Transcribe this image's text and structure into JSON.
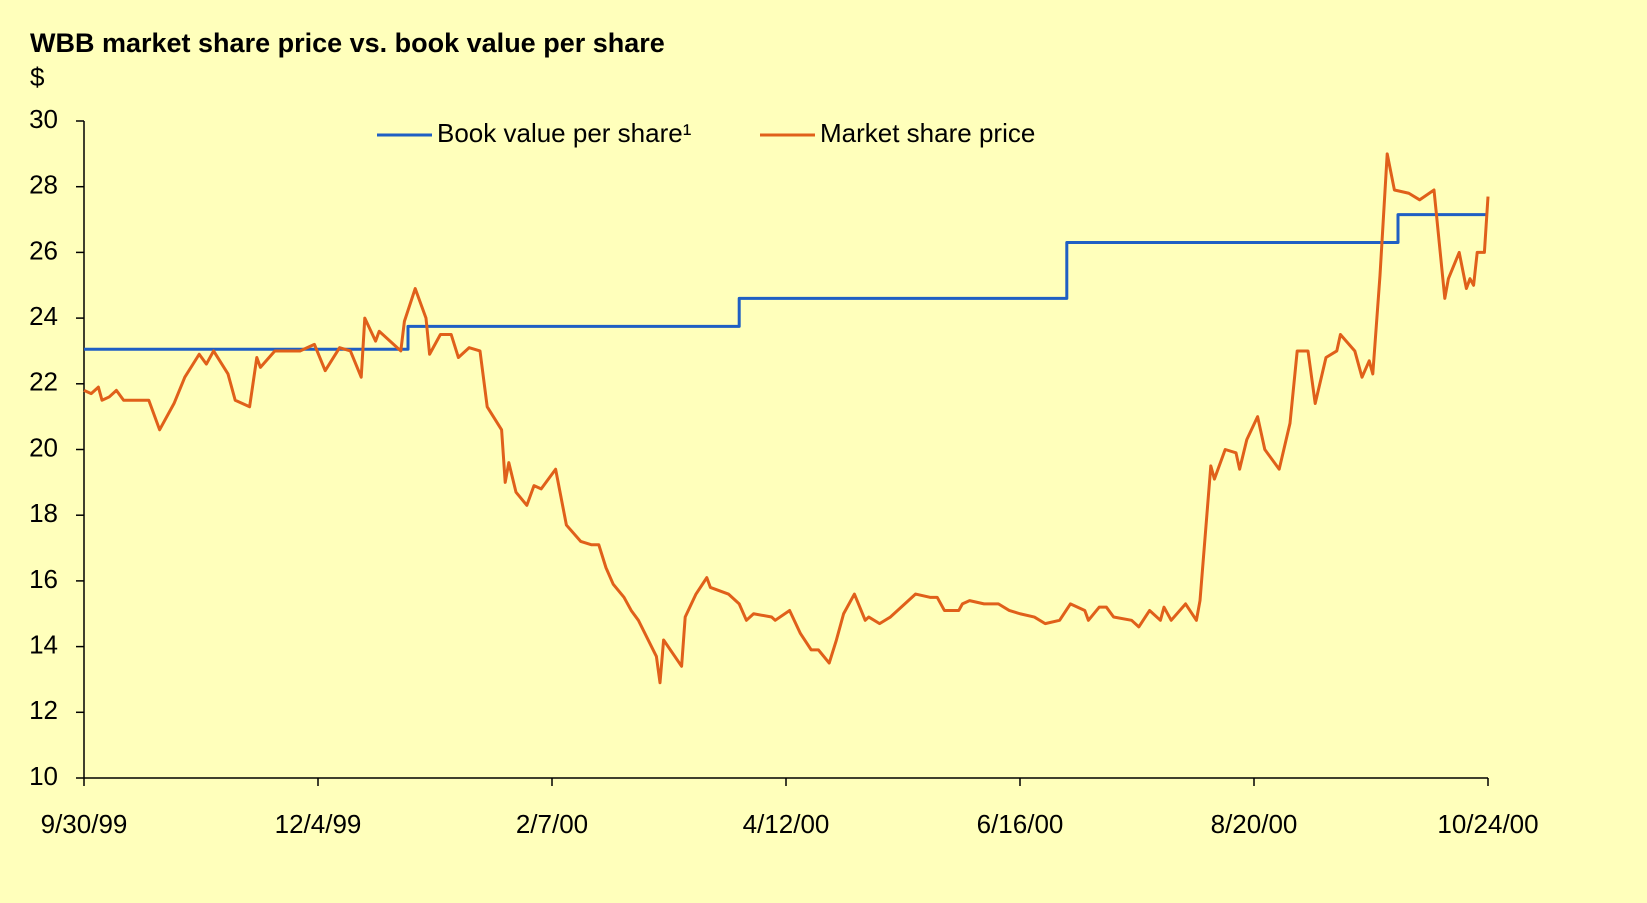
{
  "chart_data": {
    "type": "line",
    "title": "WBB market share price vs. book value per share",
    "y_label": "$",
    "ylim": [
      10,
      30
    ],
    "yticks": [
      10,
      12,
      14,
      16,
      18,
      20,
      22,
      24,
      26,
      28,
      30
    ],
    "xlim": [
      "9/30/99",
      "10/24/00"
    ],
    "xticks": [
      "9/30/99",
      "12/4/99",
      "2/7/00",
      "4/12/00",
      "6/16/00",
      "8/20/00",
      "10/24/00"
    ],
    "legend": "top",
    "series": [
      {
        "name": "Book value per share¹",
        "color": "#1f5fc4",
        "step": true,
        "x": [
          "9/30/99",
          "12/29/99",
          "3/30/00",
          "6/29/00",
          "9/29/00",
          "10/24/00"
        ],
        "values": [
          23.05,
          23.75,
          24.6,
          26.3,
          27.15,
          27.15
        ]
      },
      {
        "name": "Market share price",
        "color": "#e0601a",
        "x": [
          "9/30/99",
          "10/2/99",
          "10/4/99",
          "10/5/99",
          "10/7/99",
          "10/9/99",
          "10/11/99",
          "10/14/99",
          "10/18/99",
          "10/21/99",
          "10/25/99",
          "10/28/99",
          "11/1/99",
          "11/3/99",
          "11/5/99",
          "11/9/99",
          "11/11/99",
          "11/15/99",
          "11/17/99",
          "11/18/99",
          "11/22/99",
          "11/29/99",
          "12/3/99",
          "12/6/99",
          "12/10/99",
          "12/13/99",
          "12/16/99",
          "12/17/99",
          "12/20/99",
          "12/21/99",
          "12/25/99",
          "12/27/99",
          "12/28/99",
          "12/31/99",
          "1/3/00",
          "1/4/00",
          "1/7/00",
          "1/10/00",
          "1/12/00",
          "1/15/00",
          "1/18/00",
          "1/20/00",
          "1/24/00",
          "1/25/00",
          "1/26/00",
          "1/28/00",
          "1/31/00",
          "2/2/00",
          "2/4/00",
          "2/8/00",
          "2/11/00",
          "2/15/00",
          "2/18/00",
          "2/20/00",
          "2/22/00",
          "2/24/00",
          "2/27/00",
          "2/29/00",
          "3/2/00",
          "3/7/00",
          "3/8/00",
          "3/9/00",
          "3/14/00",
          "3/15/00",
          "3/18/00",
          "3/21/00",
          "3/22/00",
          "3/27/00",
          "3/30/00",
          "4/1/00",
          "4/3/00",
          "4/8/00",
          "4/9/00",
          "4/13/00",
          "4/16/00",
          "4/19/00",
          "4/21/00",
          "4/24/00",
          "4/26/00",
          "4/28/00",
          "5/1/00",
          "5/4/00",
          "5/5/00",
          "5/8/00",
          "5/11/00",
          "5/15/00",
          "5/18/00",
          "5/22/00",
          "5/24/00",
          "5/26/00",
          "5/30/00",
          "5/31/00",
          "6/2/00",
          "6/6/00",
          "6/10/00",
          "6/13/00",
          "6/16/00",
          "6/20/00",
          "6/23/00",
          "6/27/00",
          "6/30/00",
          "7/4/00",
          "7/5/00",
          "7/8/00",
          "7/10/00",
          "7/12/00",
          "7/17/00",
          "7/19/00",
          "7/22/00",
          "7/25/00",
          "7/26/00",
          "7/28/00",
          "8/1/00",
          "8/4/00",
          "8/5/00",
          "8/8/00",
          "8/9/00",
          "8/12/00",
          "8/15/00",
          "8/16/00",
          "8/18/00",
          "8/21/00",
          "8/23/00",
          "8/27/00",
          "8/30/00",
          "9/1/00",
          "9/4/00",
          "9/6/00",
          "9/9/00",
          "9/12/00",
          "9/13/00",
          "9/17/00",
          "9/19/00",
          "9/21/00",
          "9/22/00",
          "9/24/00",
          "9/26/00",
          "9/28/00",
          "10/2/00",
          "10/5/00",
          "10/9/00",
          "10/12/00",
          "10/13/00",
          "10/16/00",
          "10/18/00",
          "10/19/00",
          "10/20/00",
          "10/21/00",
          "10/23/00",
          "10/24/00"
        ],
        "values": [
          21.8,
          21.7,
          21.9,
          21.5,
          21.6,
          21.8,
          21.5,
          21.5,
          21.5,
          20.6,
          21.4,
          22.2,
          22.9,
          22.6,
          23.0,
          22.3,
          21.5,
          21.3,
          22.8,
          22.5,
          23.0,
          23.0,
          23.2,
          22.4,
          23.1,
          23.0,
          22.2,
          24.0,
          23.3,
          23.6,
          23.2,
          23.0,
          23.9,
          24.9,
          24.0,
          22.9,
          23.5,
          23.5,
          22.8,
          23.1,
          23.0,
          21.3,
          20.6,
          19.0,
          19.6,
          18.7,
          18.3,
          18.9,
          18.8,
          19.4,
          17.7,
          17.2,
          17.1,
          17.1,
          16.4,
          15.9,
          15.5,
          15.1,
          14.8,
          13.7,
          12.9,
          14.2,
          13.4,
          14.9,
          15.6,
          16.1,
          15.8,
          15.6,
          15.3,
          14.8,
          15.0,
          14.9,
          14.8,
          15.1,
          14.4,
          13.9,
          13.9,
          13.5,
          14.2,
          15.0,
          15.6,
          14.8,
          14.9,
          14.7,
          14.9,
          15.3,
          15.6,
          15.5,
          15.5,
          15.1,
          15.1,
          15.3,
          15.4,
          15.3,
          15.3,
          15.1,
          15.0,
          14.9,
          14.7,
          14.8,
          15.3,
          15.1,
          14.8,
          15.2,
          15.2,
          14.9,
          14.8,
          14.6,
          15.1,
          14.8,
          15.2,
          14.8,
          15.3,
          14.8,
          15.4,
          19.5,
          19.1,
          20.0,
          19.9,
          19.4,
          20.3,
          21.0,
          20.0,
          19.4,
          20.8,
          23.0,
          23.0,
          21.4,
          22.8,
          23.0,
          23.5,
          23.0,
          22.2,
          22.7,
          22.3,
          25.3,
          29.0,
          27.9,
          27.8,
          27.6,
          27.9,
          24.6,
          25.2,
          26.0,
          24.9,
          25.2,
          25.0,
          26.0,
          26.0,
          27.7
        ]
      }
    ]
  }
}
